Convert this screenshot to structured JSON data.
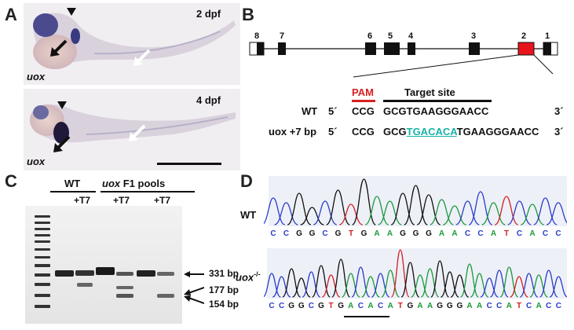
{
  "panel_a": {
    "letter": "A",
    "top_stage": "2 dpf",
    "bottom_stage": "4 dpf",
    "top_gene": "uox",
    "bottom_gene": "uox"
  },
  "panel_b": {
    "letter": "B",
    "exons": [
      "8",
      "7",
      "6",
      "5",
      "4",
      "3",
      "2",
      "1"
    ],
    "pam_label": "PAM",
    "target_label": "Target site",
    "wt_label": "WT",
    "wt_5": "5´",
    "wt_pam": "CCG",
    "wt_seq": "GCGTGAAGGGAACC",
    "wt_3": "3´",
    "mut_label": "uox +7 bp",
    "mut_5": "5´",
    "mut_pam": "CCG",
    "mut_seq_a": "GCG",
    "mut_seq_ins": "TGACACA",
    "mut_seq_b": "TGAAGGGAACC",
    "mut_3": "3´"
  },
  "panel_c": {
    "letter": "C",
    "wt_header": "WT",
    "uox_header_gene": "uox",
    "uox_header_rest": " F1 pools",
    "t7_1": "+T7",
    "t7_2": "+T7",
    "t7_3": "+T7",
    "band_331": "331 bp",
    "band_177": "177 bp",
    "band_154": "154 bp"
  },
  "panel_d": {
    "letter": "D",
    "wt_label": "WT",
    "mut_label_gene": "uox",
    "mut_label_sup": "-/-",
    "wt_bases": [
      "C",
      "C",
      "G",
      "G",
      "C",
      "G",
      "T",
      "G",
      "A",
      "A",
      "G",
      "G",
      "G",
      "A",
      "A",
      "C",
      "C",
      "A",
      "T",
      "C",
      "A",
      "C",
      "C"
    ],
    "mut_bases": [
      "C",
      "C",
      "G",
      "G",
      "C",
      "G",
      "T",
      "G",
      "A",
      "C",
      "A",
      "C",
      "A",
      "T",
      "G",
      "A",
      "A",
      "G",
      "G",
      "G",
      "A",
      "A",
      "C",
      "C",
      "A",
      "T",
      "C",
      "A",
      "C",
      "C"
    ]
  },
  "colors": {
    "pam_red": "#d62020",
    "insert_teal": "#19b3a6",
    "base_C": "#2a3cc8",
    "base_G": "#111111",
    "base_A": "#1a9a3a",
    "base_T": "#d22020",
    "exon_highlight": "#e8141b"
  }
}
